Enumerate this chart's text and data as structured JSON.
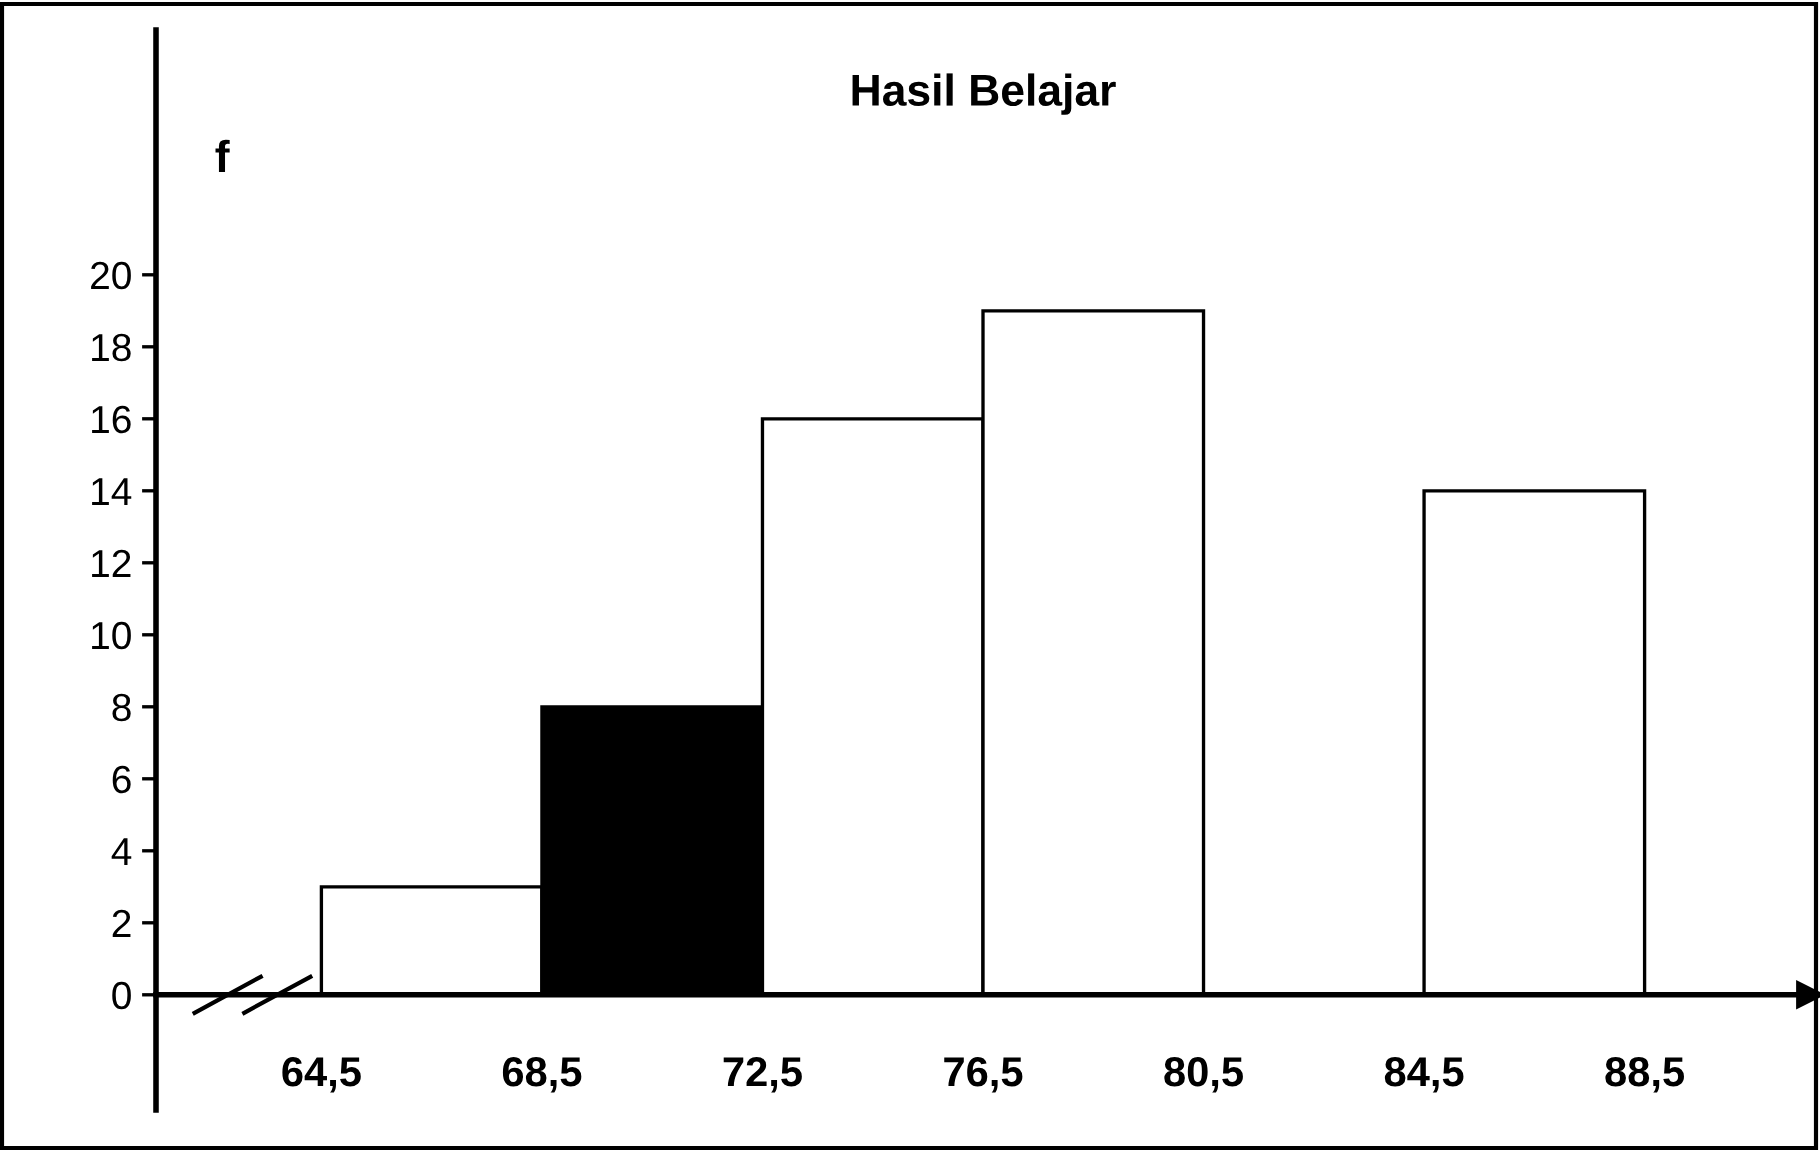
{
  "chart_data": {
    "type": "histogram",
    "title": "Hasil Belajar",
    "ylabel": "f",
    "bins": [
      64.5,
      68.5,
      72.5,
      76.5,
      80.5,
      84.5,
      88.5
    ],
    "values": [
      3,
      8,
      16,
      19,
      0,
      14
    ],
    "colors": [
      "#ffffff",
      "#000000",
      "#ffffff",
      "#ffffff",
      "#ffffff",
      "#ffffff"
    ],
    "xlim": [
      61.5,
      91.5
    ],
    "xticks": [
      {
        "value": 64.5,
        "label": "64,5"
      },
      {
        "value": 68.5,
        "label": "68,5"
      },
      {
        "value": 72.5,
        "label": "72,5"
      },
      {
        "value": 76.5,
        "label": "76,5"
      },
      {
        "value": 80.5,
        "label": "80,5"
      },
      {
        "value": 84.5,
        "label": "84,5"
      },
      {
        "value": 88.5,
        "label": "88,5"
      }
    ],
    "ylim": [
      -3.2,
      26.8
    ],
    "yticks": [
      0,
      2,
      4,
      6,
      8,
      10,
      12,
      14,
      16,
      18,
      20
    ],
    "grid": false
  }
}
